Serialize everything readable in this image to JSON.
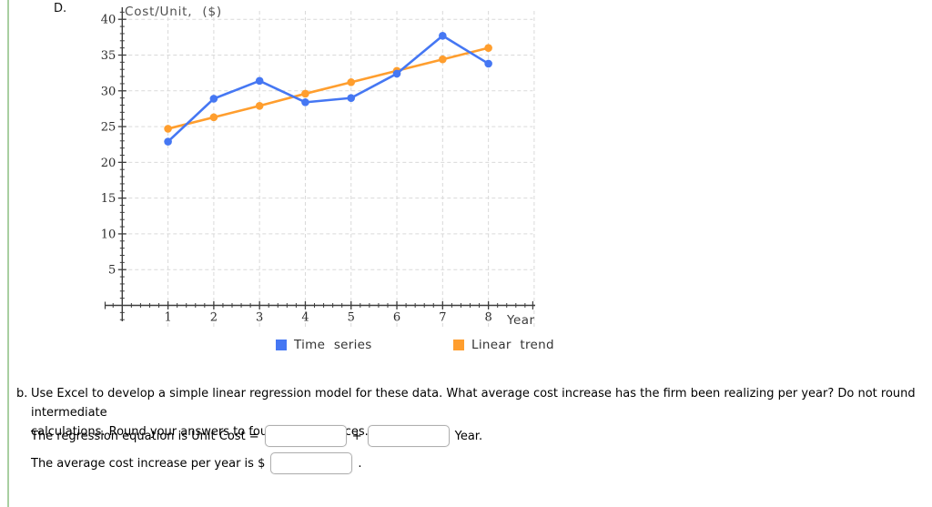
{
  "page": {
    "panel_label": "D.",
    "question": {
      "prefix": "b.",
      "line1": "Use Excel to develop a simple linear regression model for these data. What average cost increase has the firm been realizing per year? Do not round intermediate",
      "line2": "calculations. Round your answers to four decimal places."
    },
    "regression_row": {
      "label": "The regression equation is Unit Cost =",
      "plus": "+",
      "suffix": "Year.",
      "input1_value": "",
      "input2_value": ""
    },
    "average_row": {
      "label": "The average cost increase per year is $",
      "suffix": ".",
      "input_value": ""
    }
  },
  "chart_data": {
    "type": "line",
    "title": "Cost/Unit, ($)",
    "xlabel": "Year",
    "x": [
      1,
      2,
      3,
      4,
      5,
      6,
      7,
      8
    ],
    "series": [
      {
        "name": "Time series",
        "color": "#4577f3",
        "values": [
          22.9,
          28.9,
          31.4,
          28.4,
          29.0,
          32.4,
          37.7,
          33.8
        ]
      },
      {
        "name": "Linear trend",
        "color": "#ff9e2e",
        "values": [
          24.7,
          26.3,
          27.9,
          29.6,
          31.2,
          32.8,
          34.4,
          36.0
        ]
      }
    ],
    "ylim": [
      0,
      41
    ],
    "xlim": [
      0,
      9
    ],
    "yticks": [
      5,
      10,
      15,
      20,
      25,
      30,
      35,
      40
    ],
    "xticks": [
      1,
      2,
      3,
      4,
      5,
      6,
      7,
      8
    ],
    "grid": true,
    "grid_style": "dashed",
    "legend_position": "bottom"
  },
  "colors": {
    "series_blue": "#4577f3",
    "series_orange": "#ff9e2e",
    "grid": "#d9d9d9",
    "axis": "#3d3d3d",
    "left_border_green": "#a9cfa1",
    "input_border": "#b0b0b0"
  }
}
